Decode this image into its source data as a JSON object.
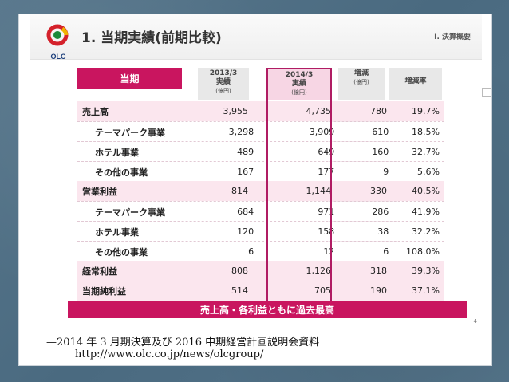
{
  "slide": {
    "title": "1. 当期実績(前期比較)",
    "section": "Ⅰ. 決算概要",
    "logo_text": "OLC",
    "page_number": "4"
  },
  "table": {
    "header_label": "当期",
    "columns": [
      {
        "line1": "2013/3",
        "line2": "実績",
        "unit": "(億円)"
      },
      {
        "line1": "2014/3",
        "line2": "実績",
        "unit": "(億円)"
      },
      {
        "line1": "増減",
        "line2": "",
        "unit": "(億円)"
      },
      {
        "line1": "増減率",
        "line2": "",
        "unit": ""
      }
    ],
    "rows": [
      {
        "label": "売上高",
        "kind": "main",
        "v": [
          "3,955",
          "4,735",
          "780",
          "19.7%"
        ]
      },
      {
        "label": "テーマパーク事業",
        "kind": "sub",
        "v": [
          "3,298",
          "3,909",
          "610",
          "18.5%"
        ]
      },
      {
        "label": "ホテル事業",
        "kind": "sub",
        "v": [
          "489",
          "649",
          "160",
          "32.7%"
        ]
      },
      {
        "label": "その他の事業",
        "kind": "sub",
        "v": [
          "167",
          "177",
          "9",
          "5.6%"
        ]
      },
      {
        "label": "営業利益",
        "kind": "main",
        "v": [
          "814",
          "1,144",
          "330",
          "40.5%"
        ]
      },
      {
        "label": "テーマパーク事業",
        "kind": "sub",
        "v": [
          "684",
          "971",
          "286",
          "41.9%"
        ]
      },
      {
        "label": "ホテル事業",
        "kind": "sub",
        "v": [
          "120",
          "158",
          "38",
          "32.2%"
        ]
      },
      {
        "label": "その他の事業",
        "kind": "sub",
        "v": [
          "6",
          "12",
          "6",
          "108.0%"
        ]
      },
      {
        "label": "経常利益",
        "kind": "main",
        "v": [
          "808",
          "1,126",
          "318",
          "39.3%"
        ]
      },
      {
        "label": "当期純利益",
        "kind": "main",
        "v": [
          "514",
          "705",
          "190",
          "37.1%"
        ]
      }
    ]
  },
  "banner": "売上高・各利益ともに過去最高",
  "caption": "—2014 年 3 月期決算及び 2016 中期経営計画説明会資料",
  "url": "http://www.olc.co.jp/news/olcgroup/",
  "colors": {
    "accent": "#c9155f",
    "highlight_border": "#b01c63",
    "row_tint": "#fbe6ee"
  }
}
